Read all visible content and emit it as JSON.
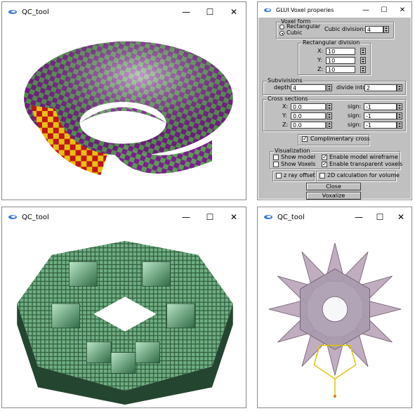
{
  "windows": {
    "top_left": {
      "title": "QC_tool"
    },
    "bottom_left": {
      "title": "QC_tool"
    },
    "bottom_right": {
      "title": "QC_tool"
    },
    "voxel": {
      "title": "GLUI Voxel properies"
    }
  },
  "voxel": {
    "voxel_form": {
      "caption": "Voxel form",
      "rectangular_label": "Rectangular",
      "cubic_label": "Cubic",
      "selected": "Cubic",
      "cubic_division_label": "Cubic division:",
      "cubic_division_value": "4"
    },
    "rect_division": {
      "caption": "Rectangular division",
      "x_label": "X:",
      "x_value": "10",
      "y_label": "Y:",
      "y_value": "10",
      "z_label": "Z:",
      "z_value": "10"
    },
    "subdivisions": {
      "caption": "Subvivisions",
      "depth_label": "depth:",
      "depth_value": "4",
      "divide_label": "divide into",
      "divide_value": "2"
    },
    "cross": {
      "caption": "Cross sections",
      "x_label": "X:",
      "x_value": "0.0",
      "y_label": "Y:",
      "y_value": "0.0",
      "z_label": "Z:",
      "z_value": "0.0",
      "sign_label": "sign:",
      "sign_x": "-1",
      "sign_y": "-1",
      "sign_z": "-1"
    },
    "complimentary": {
      "label": "Complimentary cross",
      "checked": true
    },
    "visualization": {
      "caption": "Visualization",
      "show_model": "Show model",
      "show_voxels": "Show Voxels",
      "wireframe": "Enable model wireframe",
      "transparent": "Enable transparent voxels"
    },
    "z_ray": "z ray offset",
    "calc2d": "2D calculation for volume",
    "close_label": "Close",
    "voxalize_label": "Voxalize"
  },
  "icons": {
    "minimize": "minimize-icon",
    "maximize": "maximize-icon",
    "close": "close-icon",
    "app": "app-logo-icon"
  },
  "colors": {
    "panel_bg": "#c0c0c0",
    "torus_purple": "#7a1f8c",
    "torus_green": "#5f9a5a",
    "torus_red": "#c0141c",
    "torus_yellow": "#e8c010",
    "voxel_green": "#5f9a72"
  }
}
